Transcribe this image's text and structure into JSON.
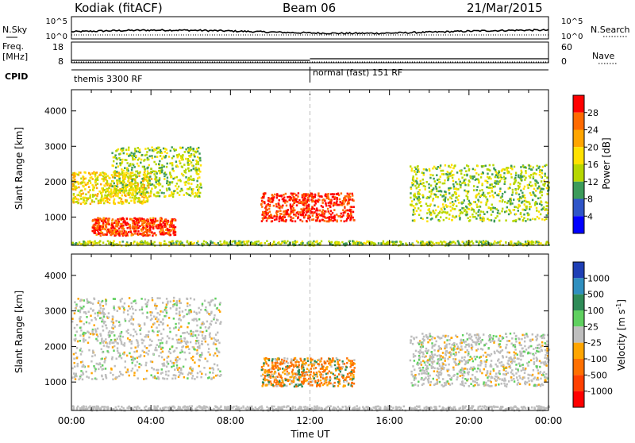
{
  "header": {
    "station": "Kodiak (fitACF)",
    "beam": "Beam 06",
    "date": "21/Mar/2015"
  },
  "nsky_panel": {
    "left_label": "N.Sky",
    "right_label": "N.Search",
    "left_ticks": [
      "10^5",
      "10^0"
    ],
    "right_ticks": [
      "10^5",
      "10^0"
    ]
  },
  "freq_panel": {
    "left_label_1": "Freq.",
    "left_label_2": "[MHz]",
    "left_ticks": [
      "18",
      "8"
    ],
    "right_label": "Nave",
    "right_ticks": [
      "60",
      "0"
    ]
  },
  "cpid_panel": {
    "label": "CPID",
    "modes": [
      {
        "text": "themis 3300 RF",
        "start_hour": 0
      },
      {
        "text": "normal (fast) 151 RF",
        "start_hour": 12
      }
    ]
  },
  "chart_data": [
    {
      "type": "heatmap",
      "title": "",
      "xlabel": "Time UT",
      "ylabel": "Slant Range [km]",
      "xlim_hours": [
        0,
        24
      ],
      "ylim_km": [
        200,
        4600
      ],
      "x_ticks": [
        "00:00",
        "04:00",
        "08:00",
        "12:00",
        "16:00",
        "20:00",
        "00:00"
      ],
      "y_ticks": [
        1000,
        2000,
        3000,
        4000
      ],
      "colorbar": {
        "label": "Power [dB]",
        "ticks": [
          "28",
          "24",
          "20",
          "16",
          "12",
          "8",
          "4"
        ],
        "colors": [
          "#ff0000",
          "#ff6a00",
          "#ffa500",
          "#ffe100",
          "#b6d700",
          "#3c9b5a",
          "#2f55c8",
          "#0000ff"
        ]
      },
      "features": [
        {
          "name": "pre-dawn band",
          "hours": [
            0,
            4
          ],
          "range_km": [
            1400,
            2300
          ],
          "power_db": 16
        },
        {
          "name": "morning oblique",
          "hours": [
            2,
            6.5
          ],
          "range_km": [
            1600,
            3000
          ],
          "power_db": 12
        },
        {
          "name": "near range echoes",
          "hours": [
            1,
            5.2
          ],
          "range_km": [
            500,
            1000
          ],
          "power_db": 26
        },
        {
          "name": "midday patches",
          "hours": [
            9.5,
            14.2
          ],
          "range_km": [
            900,
            1700
          ],
          "power_db": 27
        },
        {
          "name": "evening band",
          "hours": [
            17,
            24
          ],
          "range_km": [
            900,
            2500
          ],
          "power_db": 12
        }
      ]
    },
    {
      "type": "heatmap",
      "title": "",
      "xlabel": "Time UT",
      "ylabel": "Slant Range [km]",
      "xlim_hours": [
        0,
        24
      ],
      "ylim_km": [
        200,
        4600
      ],
      "x_ticks": [
        "00:00",
        "04:00",
        "08:00",
        "12:00",
        "16:00",
        "20:00",
        "00:00"
      ],
      "y_ticks": [
        1000,
        2000,
        3000,
        4000
      ],
      "colorbar": {
        "label": "Velocity [m s^-1]",
        "ticks": [
          "1000",
          "500",
          "100",
          "25",
          "-25",
          "-100",
          "-500",
          "-1000"
        ],
        "colors": [
          "#1f3fb5",
          "#2f8fbf",
          "#2e8b57",
          "#5fd05f",
          "#bebebe",
          "#ffa500",
          "#ff7000",
          "#ff4000",
          "#ff0000"
        ]
      },
      "features": [
        {
          "name": "ground scatter band",
          "hours": [
            0,
            7.5
          ],
          "range_km": [
            1100,
            3400
          ],
          "velocity": 0
        },
        {
          "name": "midday flows",
          "hours": [
            9.5,
            14.2
          ],
          "range_km": [
            900,
            1700
          ],
          "velocity": -200
        },
        {
          "name": "evening ground scatter",
          "hours": [
            17,
            24
          ],
          "range_km": [
            900,
            2400
          ],
          "velocity": 0
        }
      ]
    }
  ]
}
